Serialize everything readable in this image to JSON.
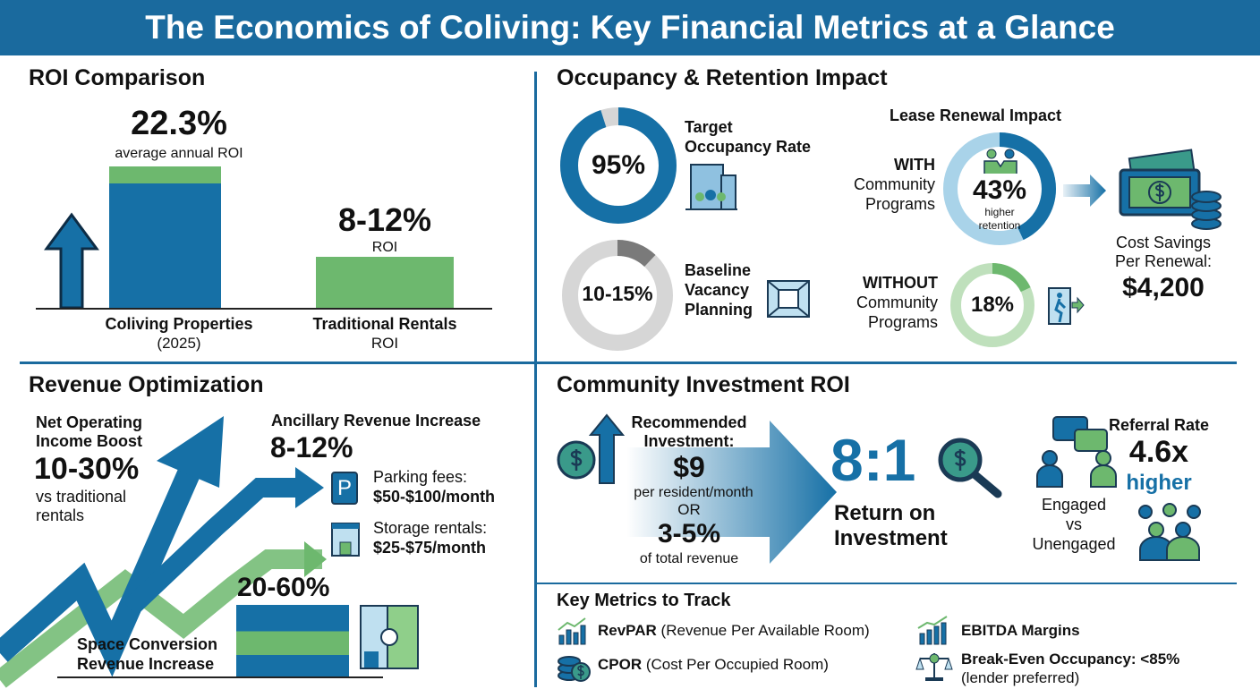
{
  "title": "The Economics of Coliving: Key Financial Metrics at a Glance",
  "colors": {
    "blue": "#1670a6",
    "green": "#6db86e",
    "light_blue": "#a9d3e9",
    "light_green": "#bfe0bc",
    "gray": "#d6d6d6",
    "dark_gray": "#7a7a7a"
  },
  "roi": {
    "heading": "ROI Comparison",
    "coliving": {
      "value": "22.3%",
      "sub": "average annual ROI",
      "label": "Coliving Properties",
      "label2": "(2025)"
    },
    "traditional": {
      "value": "8-12%",
      "sub": "ROI",
      "label": "Traditional Rentals",
      "label2": "ROI"
    }
  },
  "occupancy": {
    "heading": "Occupancy & Retention Impact",
    "target": {
      "value": "95%",
      "fraction": 0.95,
      "label1": "Target",
      "label2": "Occupancy Rate",
      "icon": "building-people-icon"
    },
    "baseline": {
      "value": "10-15%",
      "fraction": 0.12,
      "label1": "Baseline",
      "label2": "Vacancy",
      "label3": "Planning",
      "icon": "empty-room-icon"
    },
    "lease": {
      "heading": "Lease Renewal Impact",
      "with": {
        "label1": "WITH",
        "label2": "Community",
        "label3": "Programs",
        "value": "43%",
        "sub1": "higher",
        "sub2": "retention",
        "fraction": 0.43
      },
      "without": {
        "label1": "WITHOUT",
        "label2": "Community",
        "label3": "Programs",
        "value": "18%",
        "fraction": 0.18
      },
      "savings": {
        "label1": "Cost Savings",
        "label2": "Per Renewal:",
        "value": "$4,200"
      }
    }
  },
  "revenue": {
    "heading": "Revenue Optimization",
    "noi": {
      "label1": "Net Operating",
      "label2": "Income Boost",
      "value": "10-30%",
      "sub1": "vs traditional",
      "sub2": "rentals"
    },
    "ancillary": {
      "label": "Ancillary Revenue Increase",
      "value": "8-12%",
      "parking": {
        "label": "Parking fees:",
        "value": "$50-$100/month",
        "icon_text": "P"
      },
      "storage": {
        "label": "Storage rentals:",
        "value": "$25-$75/month"
      }
    },
    "space": {
      "value": "20-60%",
      "label1": "Space Conversion",
      "label2": "Revenue Increase"
    }
  },
  "community": {
    "heading": "Community Investment ROI",
    "investment": {
      "label1": "Recommended",
      "label2": "Investment:",
      "value": "$9",
      "sub": "per resident/month",
      "or": "OR",
      "value2": "3-5%",
      "sub2": "of total revenue"
    },
    "ratio": {
      "value": "8:1",
      "label1": "Return on",
      "label2": "Investment"
    },
    "referral": {
      "label": "Referral Rate",
      "value": "4.6x",
      "sub": "higher",
      "engaged": "Engaged",
      "vs": "vs",
      "unengaged": "Unengaged"
    }
  },
  "metrics": {
    "heading": "Key Metrics to Track",
    "items": [
      {
        "bold": "RevPAR",
        "rest": " (Revenue Per Available Room)",
        "icon": "bar-chart-icon"
      },
      {
        "bold": "EBITDA Margins",
        "rest": "",
        "icon": "trend-chart-icon"
      },
      {
        "bold": "CPOR",
        "rest": " (Cost Per Occupied Room)",
        "icon": "coin-stack-icon"
      },
      {
        "bold": "Break-Even Occupancy: <85%",
        "rest": "",
        "sub": "(lender preferred)",
        "icon": "scale-icon"
      }
    ]
  }
}
